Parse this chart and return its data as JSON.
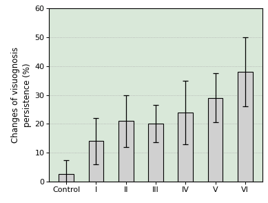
{
  "categories": [
    "Control",
    "I",
    "II",
    "III",
    "IV",
    "V",
    "VI"
  ],
  "values": [
    2.5,
    14.0,
    21.0,
    20.0,
    24.0,
    29.0,
    38.0
  ],
  "errors": [
    5.0,
    8.0,
    9.0,
    6.5,
    11.0,
    8.5,
    12.0
  ],
  "bar_color": "#d0d0d0",
  "bar_edge_color": "#000000",
  "ylabel_line1": "Changes of visuognosis",
  "ylabel_line2": "persistence (%)",
  "ylim": [
    0,
    60
  ],
  "yticks": [
    0,
    10,
    20,
    30,
    40,
    50,
    60
  ],
  "plot_bg_color": "#d9e8d9",
  "outer_bg_color": "#ffffff",
  "axis_fontsize": 8.5,
  "tick_fontsize": 8,
  "bar_width": 0.5,
  "figsize": [
    3.89,
    2.94
  ],
  "dpi": 100
}
